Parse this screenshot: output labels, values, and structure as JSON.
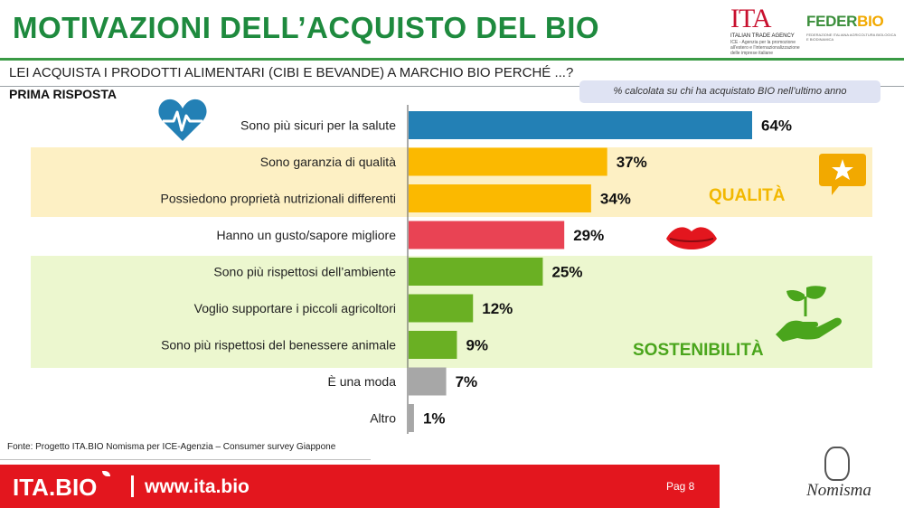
{
  "header": {
    "title": "MOTIVAZIONI DELL’ACQUISTO DEL BIO",
    "question": "LEI ACQUISTA I PRODOTTI ALIMENTARI (CIBI E BEVANDE) A MARCHIO BIO PERCHÉ ...?",
    "first_answer": "PRIMA RISPOSTA",
    "note": "% calcolata su chi ha acquistato BIO nell’ultimo anno"
  },
  "logos": {
    "ita": "ITA",
    "ita_agency": "ITALIAN TRADE AGENCY",
    "ita_desc": "ICE - Agenzia per la promozione all'estero e l'internazionalizzazione delle imprese italiane",
    "federbio_a": "FEDER",
    "federbio_b": "BIO",
    "federbio_desc": "FEDERAZIONE ITALIANA AGRICOLTURA BIOLOGICA E BIODINAMICA",
    "nomisma": "Nomisma"
  },
  "groups": {
    "qualita": "QUALITÀ",
    "sostenibilita": "SOSTENIBILITÀ"
  },
  "icons": [
    "heart-pulse-icon",
    "star-speech-icon",
    "lips-icon",
    "hand-plant-icon"
  ],
  "chart_data": {
    "type": "bar",
    "orientation": "horizontal",
    "categories": [
      "Sono più sicuri per la salute",
      "Sono garanzia di qualità",
      "Possiedono proprietà nutrizionali differenti",
      "Hanno un gusto/sapore migliore",
      "Sono più rispettosi dell’ambiente",
      "Voglio supportare i piccoli agricoltori",
      "Sono più rispettosi del benessere animale",
      "È una moda",
      "Altro"
    ],
    "values": [
      64,
      37,
      34,
      29,
      25,
      12,
      9,
      7,
      1
    ],
    "value_labels": [
      "64%",
      "37%",
      "34%",
      "29%",
      "25%",
      "12%",
      "9%",
      "7%",
      "1%"
    ],
    "colors": [
      "#2380b5",
      "#fbb900",
      "#fbb900",
      "#e94354",
      "#6ab023",
      "#6ab023",
      "#6ab023",
      "#a7a7a7",
      "#a7a7a7"
    ],
    "xlim": [
      0,
      64
    ],
    "grid": false,
    "legend": "none"
  },
  "source": "Fonte: Progetto ITA.BIO Nomisma per ICE-Agenzia – Consumer survey Giappone",
  "footer": {
    "brand": "ITA.BIO",
    "website": "www.ita.bio",
    "page": "Pag 8"
  }
}
